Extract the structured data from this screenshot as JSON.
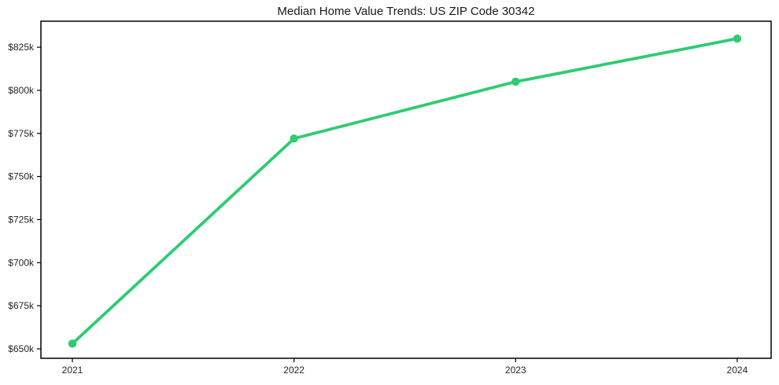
{
  "figure": {
    "background": "#ffffff"
  },
  "chart_data": {
    "type": "line",
    "title": "Median Home Value Trends: US ZIP Code 30342",
    "xlabel": "",
    "ylabel": "",
    "x": [
      2021,
      2022,
      2023,
      2024
    ],
    "x_tick_labels": [
      "2021",
      "2022",
      "2023",
      "2024"
    ],
    "y_ticks": [
      {
        "value": 650000,
        "label": "$650k"
      },
      {
        "value": 675000,
        "label": "$675k"
      },
      {
        "value": 700000,
        "label": "$700k"
      },
      {
        "value": 725000,
        "label": "$725k"
      },
      {
        "value": 750000,
        "label": "$750k"
      },
      {
        "value": 775000,
        "label": "$775k"
      },
      {
        "value": 800000,
        "label": "$800k"
      },
      {
        "value": 825000,
        "label": "$825k"
      }
    ],
    "series": [
      {
        "name": "median-home-value",
        "values": [
          653000,
          772000,
          805000,
          830000
        ],
        "color": "#2ecc71"
      }
    ],
    "xlim": [
      2020.858,
      2024.153
    ],
    "ylim": [
      644500,
      840100
    ],
    "grid": false,
    "legend": "none",
    "marker": "circle",
    "line_color": "#2ecc71",
    "axis_color": "#000000",
    "text_color": "#262626"
  }
}
